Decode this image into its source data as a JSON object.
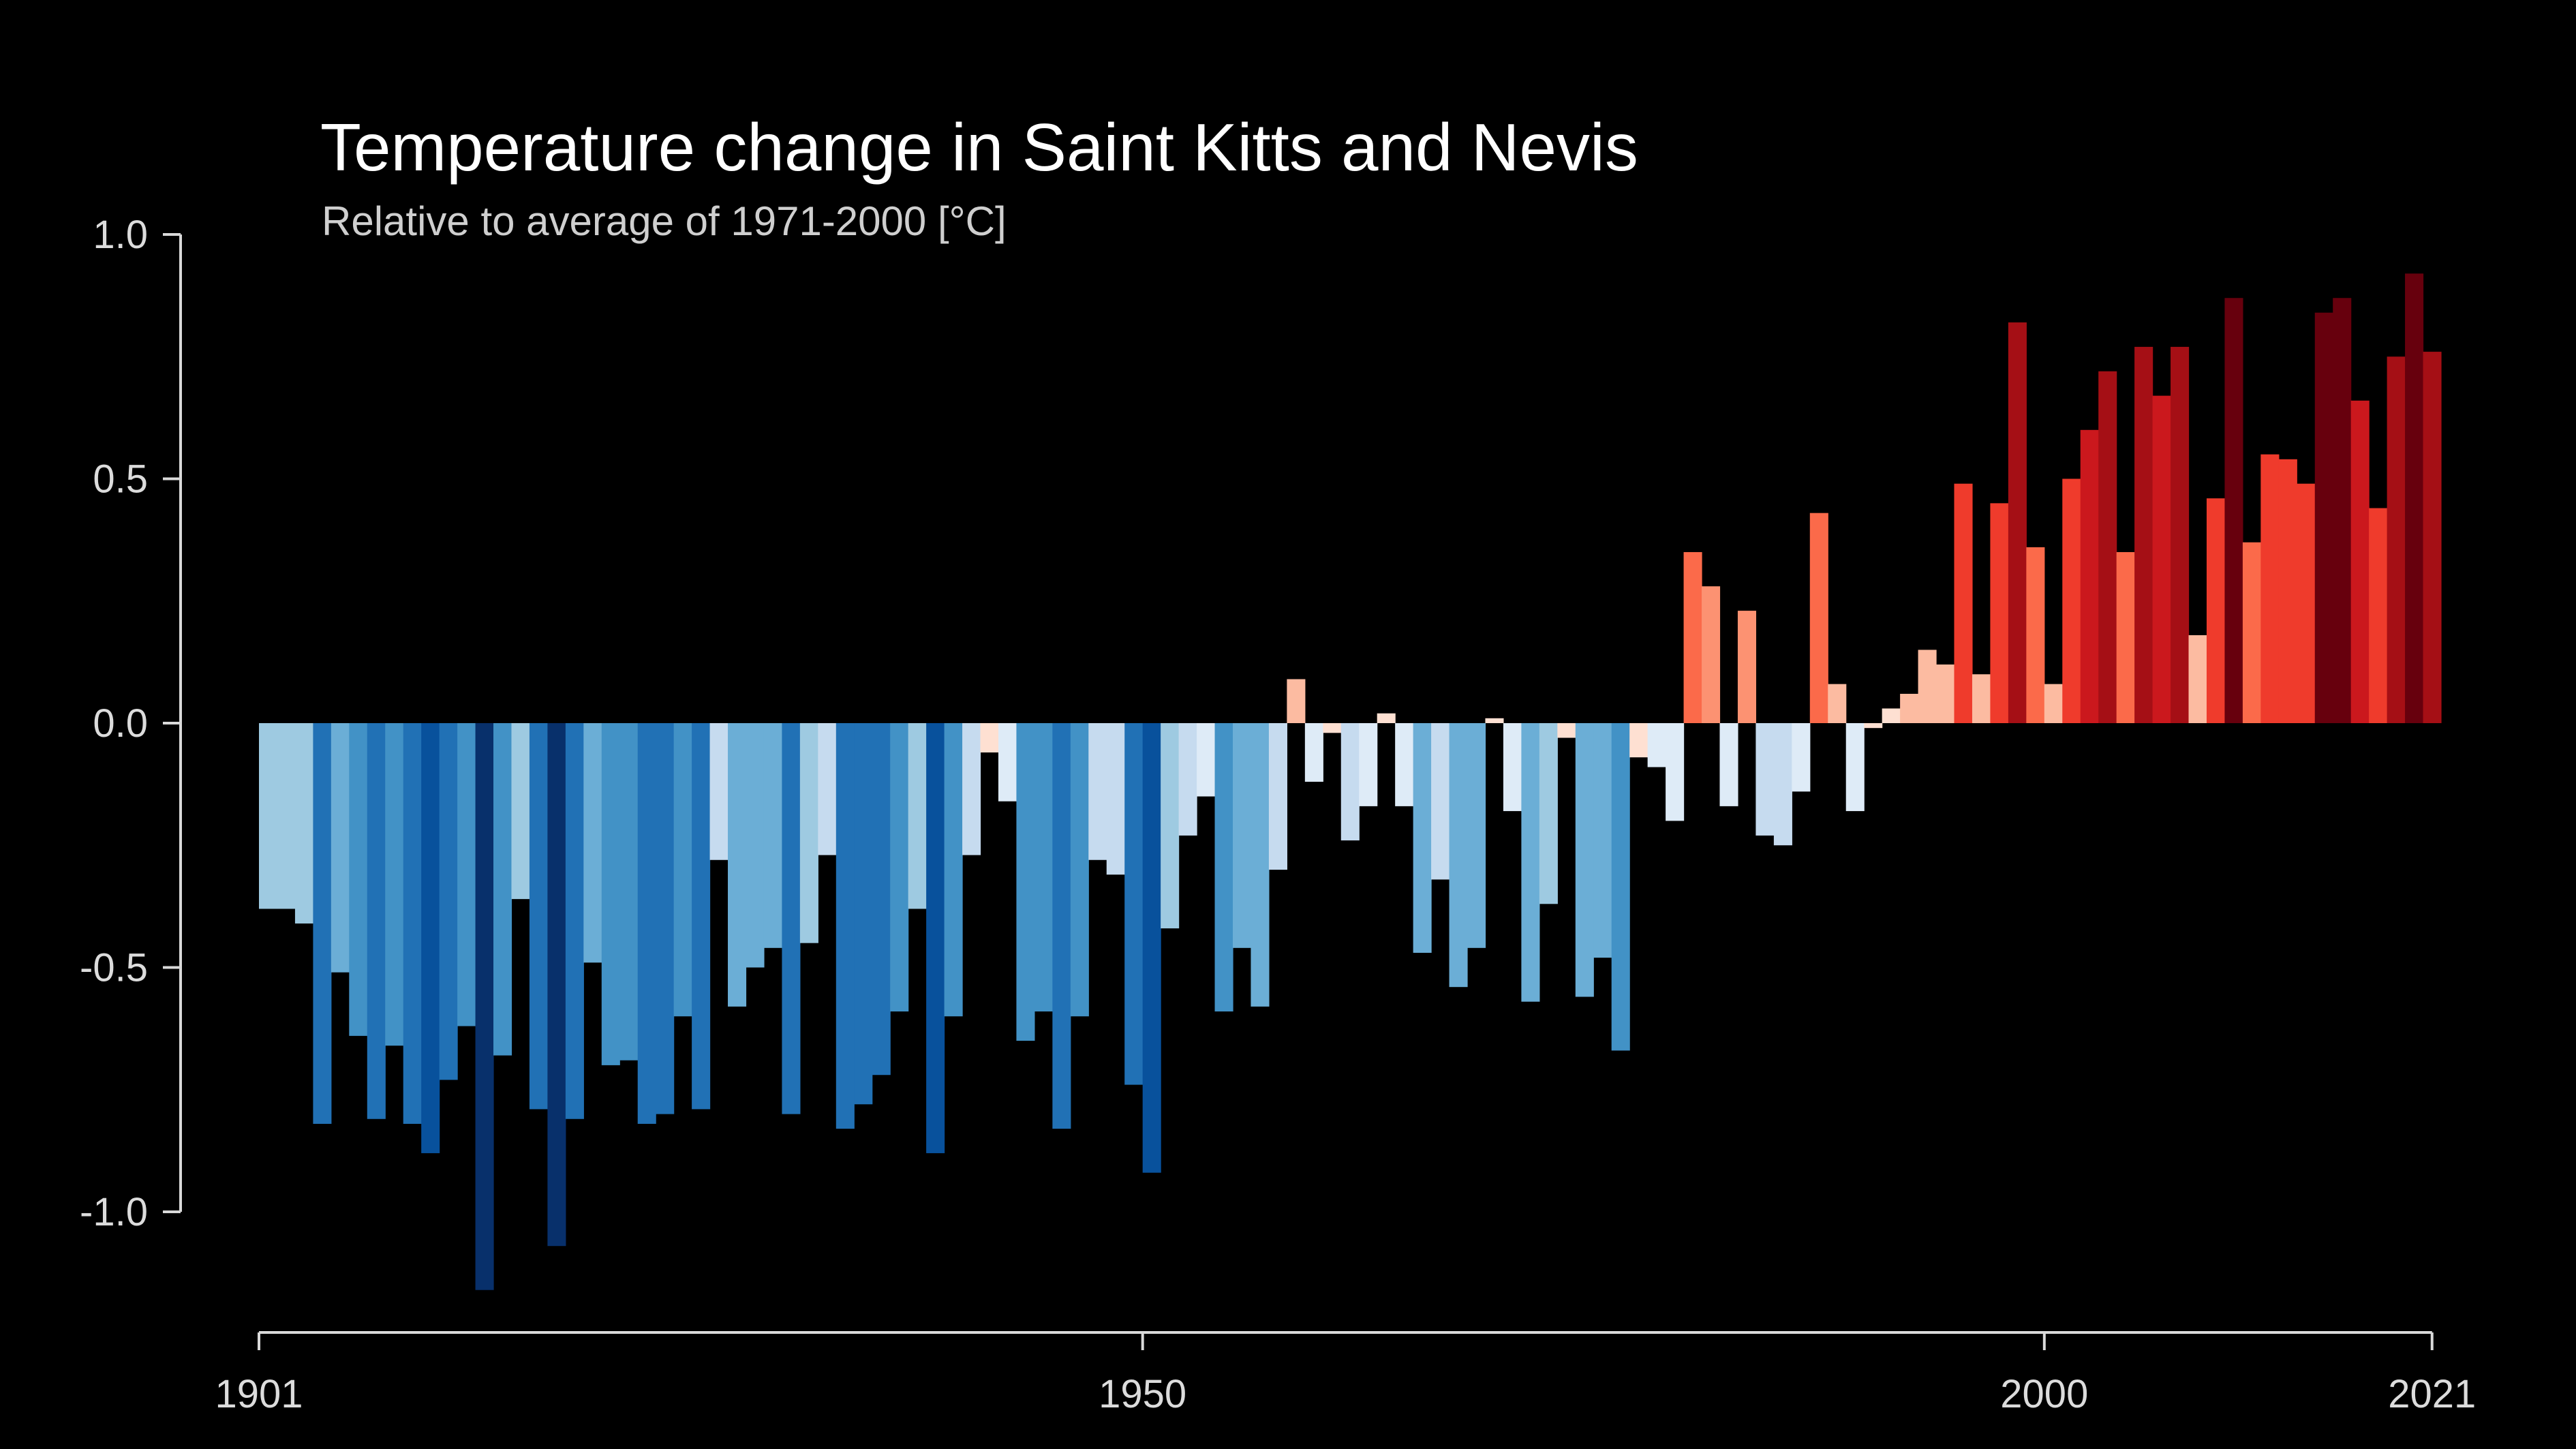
{
  "chart_data": {
    "type": "bar",
    "title": "Temperature change in Saint Kitts and Nevis",
    "subtitle": "Relative to average of 1971-2000  [°C]",
    "xlabel": "",
    "ylabel": "",
    "x_start": 1901,
    "x_end": 2021,
    "ylim": [
      -1.2,
      1.0
    ],
    "yticks": [
      1.0,
      0.5,
      0.0,
      -0.5,
      -1.0
    ],
    "ytick_labels": [
      "1.0",
      "0.5",
      "0.0",
      "-0.5",
      "-1.0"
    ],
    "xticks": [
      1901,
      1950,
      2000,
      2021
    ],
    "xtick_labels": [
      "1901",
      "1950",
      "2000",
      "2021"
    ],
    "grid": false,
    "legend": "none",
    "colors": {
      "background": "#000000",
      "axis": "#d9d9d9",
      "text": "#ffffff",
      "warming_stripes_scale": [
        "#08306b",
        "#08519c",
        "#2171b5",
        "#4292c6",
        "#6baed6",
        "#9ecae1",
        "#c6dbef",
        "#deebf7",
        "#fee0d2",
        "#fcbba1",
        "#fc9272",
        "#fb6a4a",
        "#ef3b2c",
        "#cb181d",
        "#a50f15",
        "#67000d"
      ]
    },
    "years": [
      1901,
      1902,
      1903,
      1904,
      1905,
      1906,
      1907,
      1908,
      1909,
      1910,
      1911,
      1912,
      1913,
      1914,
      1915,
      1916,
      1917,
      1918,
      1919,
      1920,
      1921,
      1922,
      1923,
      1924,
      1925,
      1926,
      1927,
      1928,
      1929,
      1930,
      1931,
      1932,
      1933,
      1934,
      1935,
      1936,
      1937,
      1938,
      1939,
      1940,
      1941,
      1942,
      1943,
      1944,
      1945,
      1946,
      1947,
      1948,
      1949,
      1950,
      1951,
      1952,
      1953,
      1954,
      1955,
      1956,
      1957,
      1958,
      1959,
      1960,
      1961,
      1962,
      1963,
      1964,
      1965,
      1966,
      1967,
      1968,
      1969,
      1970,
      1971,
      1972,
      1973,
      1974,
      1975,
      1976,
      1977,
      1978,
      1979,
      1980,
      1981,
      1982,
      1983,
      1984,
      1985,
      1986,
      1987,
      1988,
      1989,
      1990,
      1991,
      1992,
      1993,
      1994,
      1995,
      1996,
      1997,
      1998,
      1999,
      2000,
      2001,
      2002,
      2003,
      2004,
      2005,
      2006,
      2007,
      2008,
      2009,
      2010,
      2011,
      2012,
      2013,
      2014,
      2015,
      2016,
      2017,
      2018,
      2019,
      2020,
      2021
    ],
    "values": [
      -0.38,
      -0.38,
      -0.41,
      -0.82,
      -0.51,
      -0.64,
      -0.81,
      -0.66,
      -0.82,
      -0.88,
      -0.73,
      -0.62,
      -1.16,
      -0.68,
      -0.36,
      -0.79,
      -1.07,
      -0.81,
      -0.49,
      -0.7,
      -0.69,
      -0.82,
      -0.8,
      -0.6,
      -0.79,
      -0.28,
      -0.58,
      -0.5,
      -0.46,
      -0.8,
      -0.45,
      -0.27,
      -0.83,
      -0.78,
      -0.72,
      -0.59,
      -0.38,
      -0.88,
      -0.6,
      -0.27,
      -0.06,
      -0.16,
      -0.65,
      -0.59,
      -0.83,
      -0.6,
      -0.28,
      -0.31,
      -0.74,
      -0.92,
      -0.42,
      -0.23,
      -0.15,
      -0.59,
      -0.46,
      -0.58,
      -0.3,
      0.09,
      -0.12,
      -0.02,
      -0.24,
      -0.17,
      0.02,
      -0.17,
      -0.47,
      -0.32,
      -0.54,
      -0.46,
      0.01,
      -0.18,
      -0.57,
      -0.37,
      -0.03,
      -0.56,
      -0.48,
      -0.67,
      -0.07,
      -0.09,
      -0.2,
      0.35,
      0.28,
      -0.17,
      0.23,
      -0.23,
      -0.25,
      -0.14,
      0.43,
      0.08,
      -0.18,
      -0.01,
      0.03,
      0.06,
      0.15,
      0.12,
      0.49,
      0.1,
      0.45,
      0.82,
      0.36,
      0.08,
      0.5,
      0.6,
      0.72,
      0.35,
      0.77,
      0.67,
      0.77,
      0.18,
      0.46,
      0.87,
      0.37,
      0.55,
      0.54,
      0.49,
      0.84,
      0.87,
      0.66,
      0.44,
      0.75,
      0.92,
      0.76
    ]
  }
}
